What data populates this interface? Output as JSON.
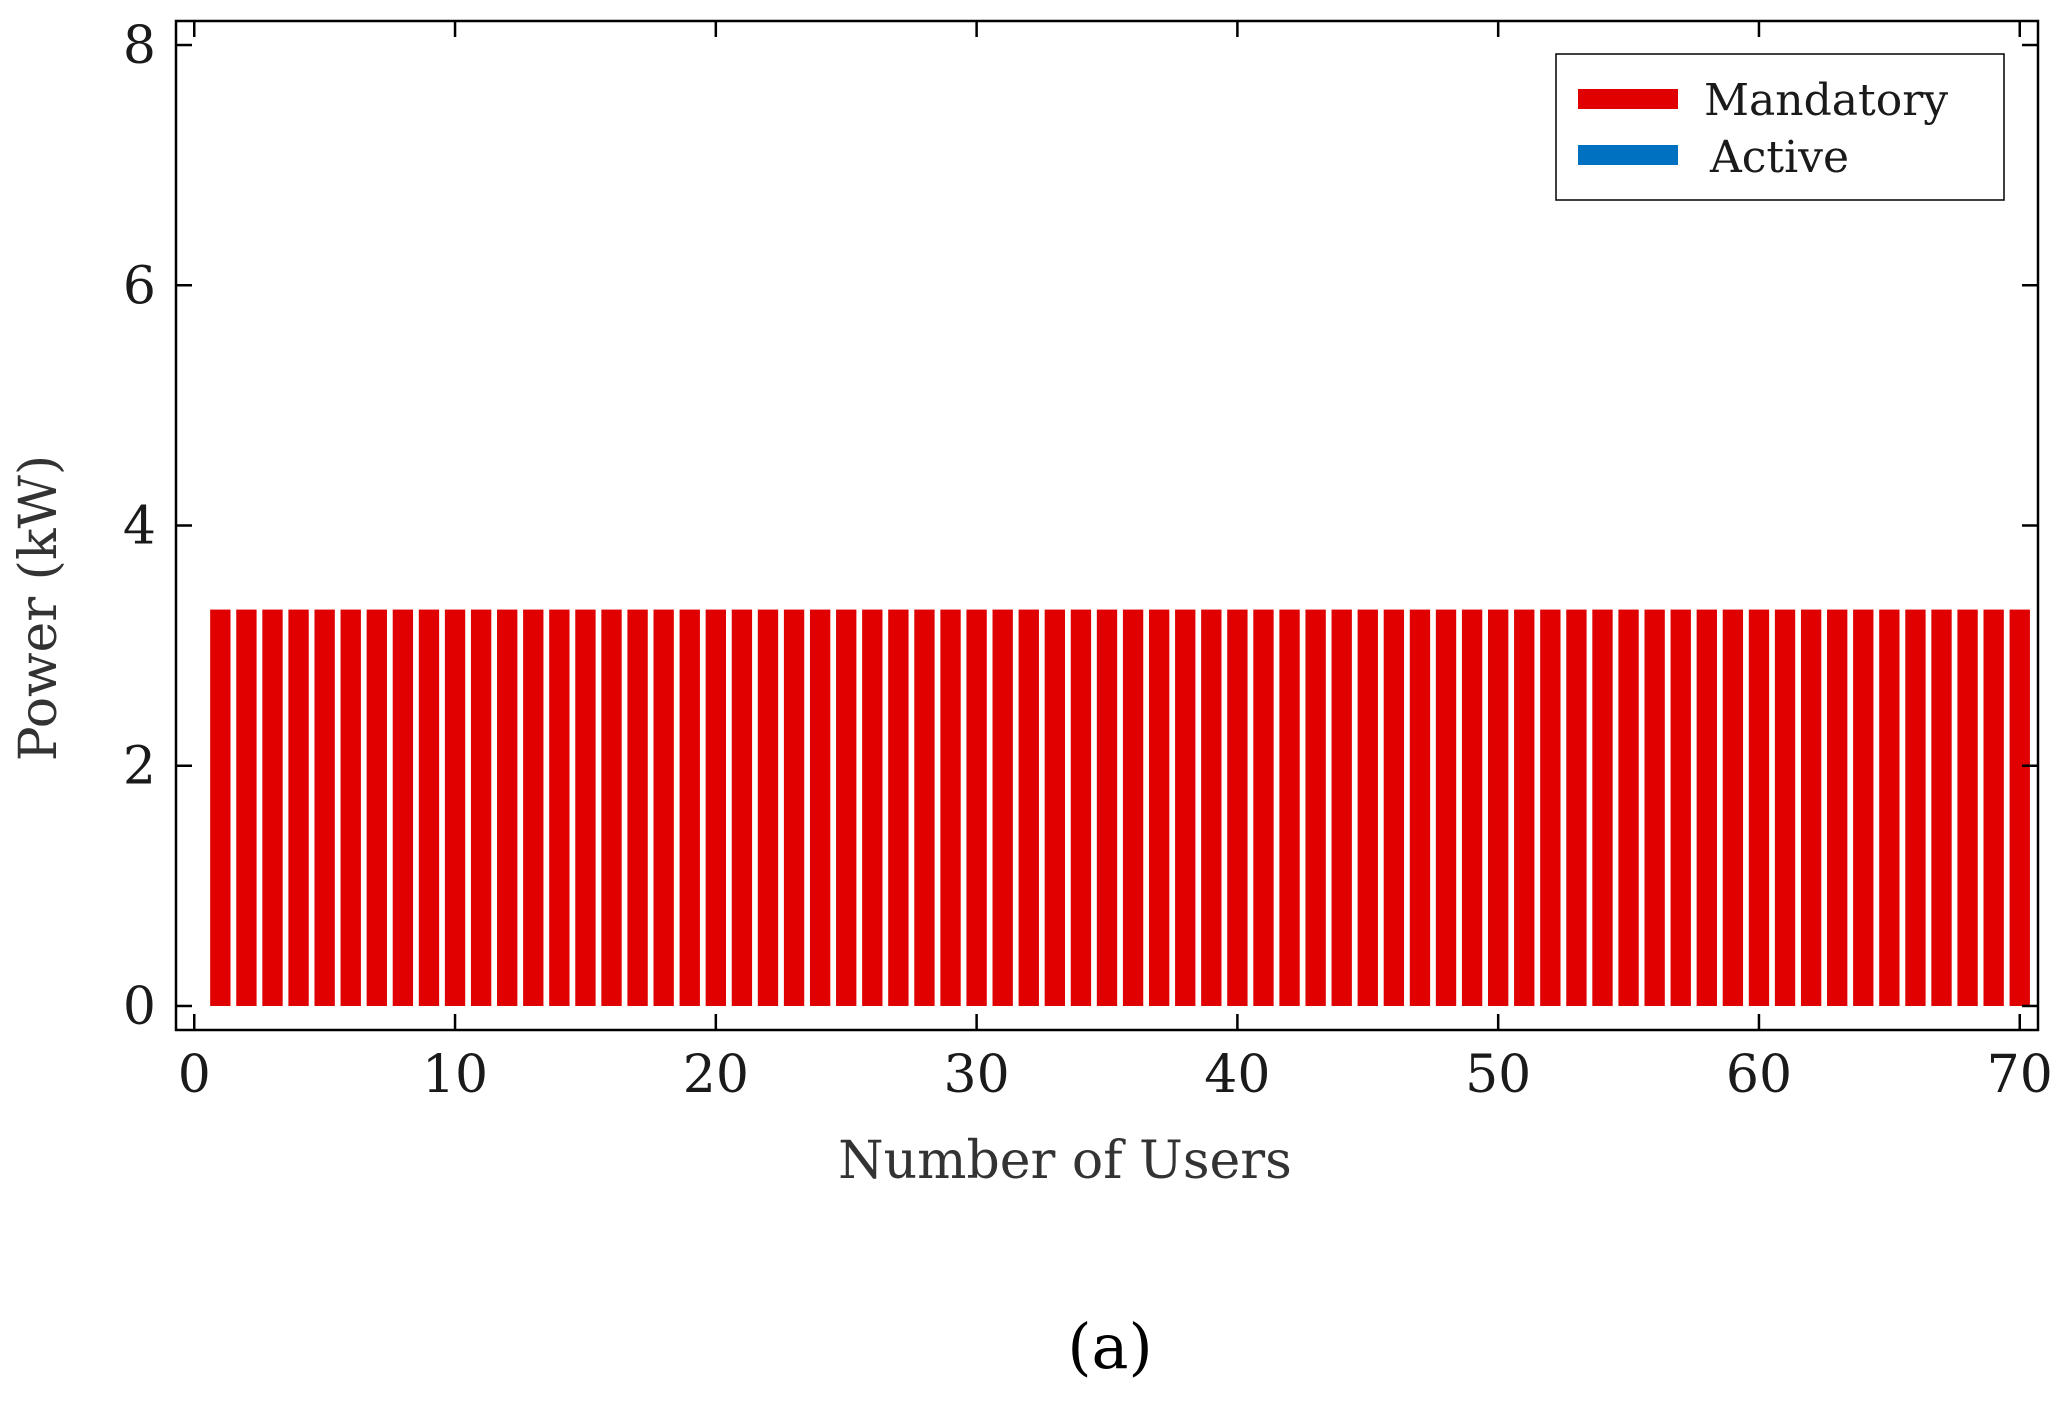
{
  "chart_data": {
    "type": "bar",
    "stacked": true,
    "x": [
      1,
      2,
      3,
      4,
      5,
      6,
      7,
      8,
      9,
      10,
      11,
      12,
      13,
      14,
      15,
      16,
      17,
      18,
      19,
      20,
      21,
      22,
      23,
      24,
      25,
      26,
      27,
      28,
      29,
      30,
      31,
      32,
      33,
      34,
      35,
      36,
      37,
      38,
      39,
      40,
      41,
      42,
      43,
      44,
      45,
      46,
      47,
      48,
      49,
      50,
      51,
      52,
      53,
      54,
      55,
      56,
      57,
      58,
      59,
      60,
      61,
      62,
      63,
      64,
      65,
      66,
      67,
      68,
      69,
      70
    ],
    "series": [
      {
        "name": "Mandatory",
        "color": "#e00000",
        "values": [
          3.3,
          3.3,
          3.3,
          3.3,
          3.3,
          3.3,
          3.3,
          3.3,
          3.3,
          3.3,
          3.3,
          3.3,
          3.3,
          3.3,
          3.3,
          3.3,
          3.3,
          3.3,
          3.3,
          3.3,
          3.3,
          3.3,
          3.3,
          3.3,
          3.3,
          3.3,
          3.3,
          3.3,
          3.3,
          3.3,
          3.3,
          3.3,
          3.3,
          3.3,
          3.3,
          3.3,
          3.3,
          3.3,
          3.3,
          3.3,
          3.3,
          3.3,
          3.3,
          3.3,
          3.3,
          3.3,
          3.3,
          3.3,
          3.3,
          3.3,
          3.3,
          3.3,
          3.3,
          3.3,
          3.3,
          3.3,
          3.3,
          3.3,
          3.3,
          3.3,
          3.3,
          3.3,
          3.3,
          3.3,
          3.3,
          3.3,
          3.3,
          3.3,
          3.3,
          3.3
        ]
      },
      {
        "name": "Active",
        "color": "#0070c0",
        "values": [
          0,
          0,
          0,
          0,
          0,
          0,
          0,
          0,
          0,
          0,
          0,
          0,
          0,
          0,
          0,
          0,
          0,
          0,
          0,
          0,
          0,
          0,
          0,
          0,
          0,
          0,
          0,
          0,
          0,
          0,
          0,
          0,
          0,
          0,
          0,
          0,
          0,
          0,
          0,
          0,
          0,
          0,
          0,
          0,
          0,
          0,
          0,
          0,
          0,
          0,
          0,
          0,
          0,
          0,
          0,
          0,
          0,
          0,
          0,
          0,
          0,
          0,
          0,
          0,
          0,
          0,
          0,
          0,
          0,
          0
        ]
      }
    ],
    "xlabel": "Number of Users",
    "ylabel": "Power (kW)",
    "xlim": [
      -0.7,
      70.7
    ],
    "ylim": [
      -0.2,
      8.2
    ],
    "xticks": [
      0,
      10,
      20,
      30,
      40,
      50,
      60,
      70
    ],
    "yticks": [
      0,
      2,
      4,
      6,
      8
    ],
    "legend_position": "top-right",
    "grid": false
  },
  "subfigure_label": "(a)"
}
